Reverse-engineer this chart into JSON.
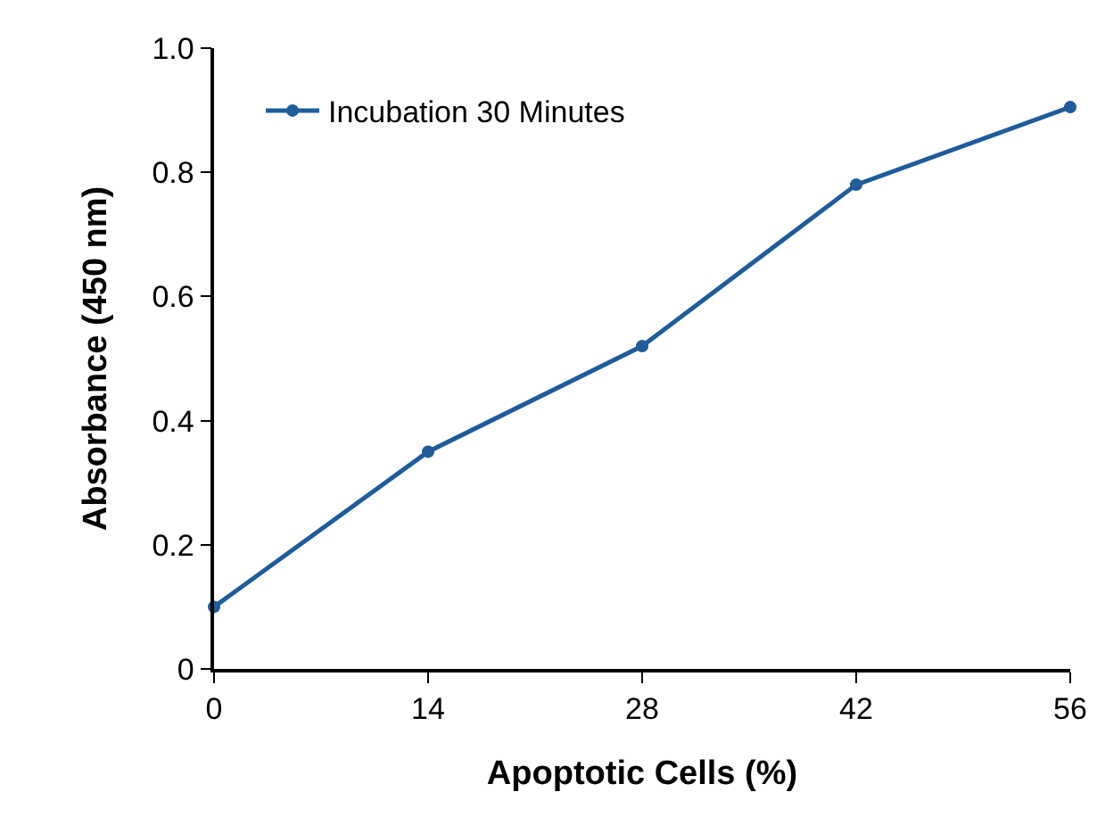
{
  "chart_data": {
    "type": "line",
    "xlabel": "Apoptotic Cells (%)",
    "ylabel": "Absorbance (450 nm)",
    "x": [
      0,
      14,
      28,
      42,
      56
    ],
    "series": [
      {
        "name": "Incubation 30 Minutes",
        "color": "#1f5c99",
        "values": [
          0.1,
          0.35,
          0.52,
          0.78,
          0.905
        ]
      }
    ],
    "xlim": [
      0,
      56
    ],
    "xticks": [
      0,
      14,
      28,
      42,
      56
    ],
    "ylim": [
      0,
      1.0
    ],
    "yticks": [
      0,
      0.2,
      0.4,
      0.6,
      0.8,
      {
        "value": 1.0,
        "label": "1.0"
      }
    ],
    "grid": false,
    "legend": "top left",
    "marker": "circle",
    "line_style": "solid"
  }
}
